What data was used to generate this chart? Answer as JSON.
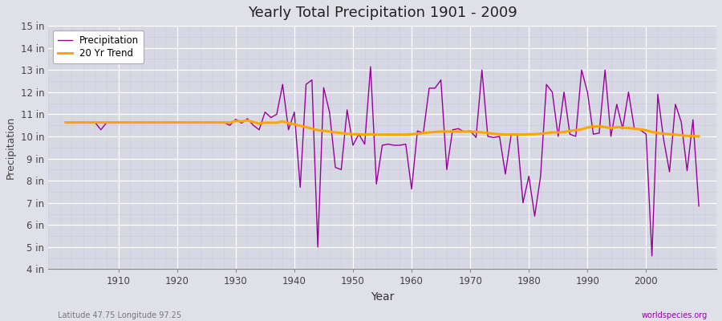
{
  "title": "Yearly Total Precipitation 1901 - 2009",
  "xlabel": "Year",
  "ylabel": "Precipitation",
  "subtitle_left": "Latitude 47.75 Longitude 97.25",
  "subtitle_right": "worldspecies.org",
  "fig_bg_color": "#e0e0e8",
  "plot_bg_color": "#d8d8e4",
  "line_color": "#990099",
  "trend_color": "#ffa500",
  "grid_color": "#ffffff",
  "minor_grid_color": "#c8c8d8",
  "ylim": [
    4,
    15
  ],
  "yticks": [
    4,
    5,
    6,
    7,
    8,
    9,
    10,
    11,
    12,
    13,
    14,
    15
  ],
  "ytick_labels": [
    "4 in",
    "5 in",
    "6 in",
    "7 in",
    "8 in",
    "9 in",
    "10 in",
    "11 in",
    "12 in",
    "13 in",
    "14 in",
    "15 in"
  ],
  "xlim_min": 1901,
  "xlim_max": 2009,
  "precipitation": {
    "1901": 10.63,
    "1902": 10.63,
    "1903": 10.63,
    "1904": 10.63,
    "1905": 10.63,
    "1906": 10.63,
    "1907": 10.3,
    "1908": 10.63,
    "1909": 10.63,
    "1910": 10.63,
    "1911": 10.63,
    "1912": 10.63,
    "1913": 10.63,
    "1914": 10.63,
    "1915": 10.63,
    "1916": 10.63,
    "1917": 10.63,
    "1918": 10.63,
    "1919": 10.63,
    "1920": 10.63,
    "1921": 10.63,
    "1922": 10.63,
    "1923": 10.63,
    "1924": 10.63,
    "1925": 10.63,
    "1926": 10.63,
    "1927": 10.63,
    "1928": 10.63,
    "1929": 10.5,
    "1930": 10.78,
    "1931": 10.6,
    "1932": 10.8,
    "1933": 10.5,
    "1934": 10.3,
    "1935": 11.1,
    "1936": 10.85,
    "1937": 11.0,
    "1938": 12.35,
    "1939": 10.3,
    "1940": 11.1,
    "1941": 7.7,
    "1942": 12.35,
    "1943": 12.55,
    "1944": 5.0,
    "1945": 12.2,
    "1946": 11.1,
    "1947": 8.6,
    "1948": 8.5,
    "1949": 11.2,
    "1950": 9.6,
    "1951": 10.1,
    "1952": 9.65,
    "1953": 13.15,
    "1954": 7.85,
    "1955": 9.6,
    "1956": 9.65,
    "1957": 9.6,
    "1958": 9.6,
    "1959": 9.65,
    "1960": 7.62,
    "1961": 10.25,
    "1962": 10.15,
    "1963": 12.18,
    "1964": 12.18,
    "1965": 12.55,
    "1966": 8.5,
    "1967": 10.3,
    "1968": 10.35,
    "1969": 10.2,
    "1970": 10.25,
    "1971": 9.95,
    "1972": 13.0,
    "1973": 10.0,
    "1974": 9.95,
    "1975": 10.0,
    "1976": 8.3,
    "1977": 10.1,
    "1978": 10.1,
    "1979": 7.0,
    "1980": 8.2,
    "1981": 6.4,
    "1982": 8.2,
    "1983": 12.35,
    "1984": 12.0,
    "1985": 10.0,
    "1986": 12.0,
    "1987": 10.1,
    "1988": 10.0,
    "1989": 13.0,
    "1990": 12.0,
    "1991": 10.1,
    "1992": 10.15,
    "1993": 13.0,
    "1994": 10.0,
    "1995": 11.45,
    "1996": 10.35,
    "1997": 12.0,
    "1998": 10.35,
    "1999": 10.3,
    "2000": 10.1,
    "2001": 4.6,
    "2002": 11.9,
    "2003": 9.85,
    "2004": 8.4,
    "2005": 11.45,
    "2006": 10.65,
    "2007": 8.45,
    "2008": 10.75,
    "2009": 6.85
  },
  "trend_x": [
    1901,
    1902,
    1903,
    1904,
    1905,
    1906,
    1907,
    1908,
    1909,
    1910,
    1911,
    1912,
    1913,
    1914,
    1915,
    1916,
    1917,
    1918,
    1919,
    1920,
    1921,
    1922,
    1923,
    1924,
    1925,
    1926,
    1927,
    1928,
    1929,
    1930,
    1931,
    1932,
    1933,
    1934,
    1935,
    1936,
    1937,
    1938,
    1939,
    1940,
    1941,
    1942,
    1943,
    1944,
    1945,
    1946,
    1947,
    1948,
    1949,
    1950,
    1951,
    1952,
    1953,
    1954,
    1955,
    1956,
    1957,
    1958,
    1959,
    1960,
    1961,
    1962,
    1963,
    1964,
    1965,
    1966,
    1967,
    1968,
    1969,
    1970,
    1971,
    1972,
    1973,
    1974,
    1975,
    1976,
    1977,
    1978,
    1979,
    1980,
    1981,
    1982,
    1983,
    1984,
    1985,
    1986,
    1987,
    1988,
    1989,
    1990,
    1991,
    1992,
    1993,
    1994,
    1995,
    1996,
    1997,
    1998,
    1999,
    2000,
    2001,
    2002,
    2003,
    2004,
    2005,
    2006,
    2007,
    2008,
    2009
  ],
  "trend_y": [
    10.63,
    10.63,
    10.63,
    10.63,
    10.63,
    10.63,
    10.63,
    10.63,
    10.63,
    10.63,
    10.63,
    10.63,
    10.63,
    10.63,
    10.63,
    10.63,
    10.63,
    10.63,
    10.63,
    10.63,
    10.63,
    10.63,
    10.63,
    10.63,
    10.63,
    10.63,
    10.63,
    10.63,
    10.62,
    10.7,
    10.68,
    10.72,
    10.65,
    10.58,
    10.62,
    10.62,
    10.62,
    10.68,
    10.6,
    10.55,
    10.48,
    10.42,
    10.35,
    10.28,
    10.25,
    10.22,
    10.18,
    10.15,
    10.12,
    10.1,
    10.1,
    10.08,
    10.1,
    10.08,
    10.08,
    10.08,
    10.08,
    10.08,
    10.08,
    10.1,
    10.12,
    10.15,
    10.18,
    10.2,
    10.22,
    10.22,
    10.22,
    10.22,
    10.22,
    10.22,
    10.2,
    10.18,
    10.15,
    10.12,
    10.1,
    10.08,
    10.08,
    10.08,
    10.08,
    10.1,
    10.1,
    10.12,
    10.15,
    10.18,
    10.18,
    10.2,
    10.25,
    10.28,
    10.32,
    10.4,
    10.45,
    10.45,
    10.42,
    10.38,
    10.42,
    10.4,
    10.38,
    10.35,
    10.32,
    10.28,
    10.2,
    10.15,
    10.12,
    10.1,
    10.08,
    10.05,
    10.02,
    10.02,
    10.0
  ]
}
